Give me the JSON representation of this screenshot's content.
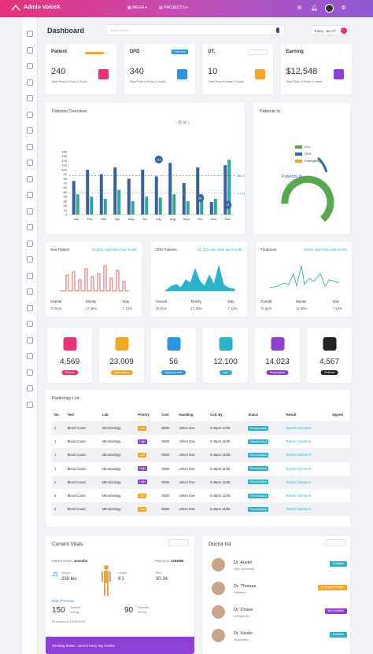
{
  "app": {
    "title": "Admin VoiceX",
    "mega": "MEGA",
    "projects": "PROJECTS"
  },
  "header": {
    "page_title": "Dashboard",
    "search_placeholder": "Voice Search",
    "today": "Today: Jan 27"
  },
  "stats": [
    {
      "label": "Patient",
      "value": "240",
      "sub": "Total Flow In Every 3 hours",
      "progress": 0.8,
      "color": "#e8327a",
      "icon": "wheelchair-icon"
    },
    {
      "label": "OPD",
      "value": "340",
      "sub": "Total Flow In Every 3 hours",
      "badge": "Click here",
      "color": "#2a94e6",
      "icon": "person-icon"
    },
    {
      "label": "OT.",
      "value": "10",
      "sub": "Total Flow In Every 3 hours",
      "color": "#f5a623",
      "icon": "calendar-icon"
    },
    {
      "label": "Earning",
      "value": "$12,548",
      "sub": "Total Flow In Every 3 hours",
      "color": "#8e3fd6",
      "icon": "wallet-icon"
    }
  ],
  "overview": {
    "title": "Patients Overview"
  },
  "chart_data": {
    "type": "bar",
    "categories": [
      "Jan",
      "Feb",
      "Mar",
      "Apr",
      "May",
      "Jun",
      "July",
      "Aug",
      "Sept",
      "Oct",
      "Nov",
      "Dec"
    ],
    "series": [
      {
        "name": "",
        "color": "#3b5fa0",
        "values": [
          75,
          100,
          90,
          105,
          80,
          100,
          85,
          115,
          70,
          105,
          28,
          110
        ]
      },
      {
        "name": "",
        "color": "#2fa89a",
        "values": [
          45,
          40,
          35,
          55,
          30,
          40,
          38,
          45,
          30,
          45,
          35,
          122
        ]
      }
    ],
    "ylim": [
      0,
      140
    ],
    "yticks": [
      "0",
      "10",
      "20",
      "30",
      "40",
      "50",
      "60",
      "70",
      "80",
      "90",
      "100",
      "110",
      "120",
      "130",
      "140"
    ],
    "annotations": [
      {
        "x": "July",
        "label": "114"
      },
      {
        "x": "Oct",
        "label": "28"
      },
      {
        "x": "Dec",
        "label": "13"
      }
    ],
    "lines": [
      {
        "value": 86.75,
        "label": "86.75"
      },
      {
        "value": 47.58,
        "label": "47.58"
      }
    ]
  },
  "patients_in": {
    "title": "Patients In",
    "legend": [
      {
        "label": "ICU",
        "color": "#57a850"
      },
      {
        "label": "OPD",
        "color": "#2a6db0"
      },
      {
        "label": "Emergency",
        "color": "#f5a623"
      }
    ],
    "center_title": "Patients In",
    "center_sub": "Daily Data"
  },
  "minis": [
    {
      "title": "New Patient",
      "highlight": "14.21% High then last month",
      "color": "#d93b3b",
      "overall": "70.51%",
      "monthly": "17.39%",
      "day": "7.12%"
    },
    {
      "title": "OPD Patients",
      "highlight": "11.12% less then last month",
      "color": "#2ab3c8",
      "overall": "70.51%",
      "monthly": "17.39%",
      "day": "7.12%"
    },
    {
      "title": "Treatment",
      "highlight": "19.5% High then last month",
      "color": "#2fa89a",
      "overall": "70.51%",
      "monthly": "17.39%",
      "day": "7.12%"
    }
  ],
  "mini_labels": {
    "overall": "Overall",
    "monthly": "Montly",
    "day": "Day"
  },
  "tiles": [
    {
      "value": "4,569",
      "label": "Patient",
      "color": "#e8327a",
      "icon": "wheelchair-icon"
    },
    {
      "value": "23,009",
      "label": "Encounters",
      "color": "#f5a623",
      "icon": "document-icon"
    },
    {
      "value": "56",
      "label": "Appointments",
      "color": "#2a94e6",
      "icon": "calendar-icon"
    },
    {
      "value": "12,100",
      "label": "Lab",
      "color": "#2ab3c8",
      "icon": "heartbeat-icon"
    },
    {
      "value": "14,023",
      "label": "Prescription",
      "color": "#8e3fd6",
      "icon": "list-icon"
    },
    {
      "value": "4,567",
      "label": "Referral",
      "color": "#222222",
      "icon": "refresh-icon"
    }
  ],
  "radiology": {
    "title": "Radiology List",
    "headers": [
      "No.",
      "Test",
      "Lab",
      "Priority",
      "Cost",
      "Handling",
      "Coll. By",
      "Status",
      "Result",
      "Signed"
    ],
    "rows": [
      {
        "no": "1",
        "test": "Blood Count",
        "lab": "Microbiology",
        "priority": "Low",
        "cost": "N500",
        "handling": "Johen Doe",
        "coll": "5.45pm 11/05",
        "status": "Result Added",
        "result": "Result Comment"
      },
      {
        "no": "1",
        "test": "Blood Count",
        "lab": "Microbiology",
        "priority": "High",
        "cost": "N500",
        "handling": "Johen Doe",
        "coll": "5.45pm 11/05",
        "status": "Result Added",
        "result": "Result Comment"
      },
      {
        "no": "1",
        "test": "Blood Count",
        "lab": "Microbiology",
        "priority": "Low",
        "cost": "N500",
        "handling": "Johen Doe",
        "coll": "5.45pm 11/05",
        "status": "Result Added",
        "result": "Result Comment"
      },
      {
        "no": "1",
        "test": "Blood Count",
        "lab": "Microbiology",
        "priority": "High",
        "cost": "N500",
        "handling": "Johen Doe",
        "coll": "5.45pm 11/05",
        "status": "Result Added",
        "result": "Result Comment"
      },
      {
        "no": "2",
        "test": "Blood Count",
        "lab": "Microbiology",
        "priority": "High",
        "cost": "N500",
        "handling": "Johen Doe",
        "coll": "5.45pm 11/05",
        "status": "Result Added",
        "result": "Result Comment"
      },
      {
        "no": "3",
        "test": "Blood Count",
        "lab": "Microbiology",
        "priority": "Low",
        "cost": "N500",
        "handling": "Johen Doe",
        "coll": "5.45pm 11/05",
        "status": "Result Added",
        "result": "Result Comment"
      },
      {
        "no": "4",
        "test": "Blood Count",
        "lab": "Microbiology",
        "priority": "Low",
        "cost": "N500",
        "handling": "Johen Doe",
        "coll": "5.45pm 11/05",
        "status": "Result Added",
        "result": "Result Comment"
      }
    ]
  },
  "vitals": {
    "title": "Current Vitals",
    "patient_name_label": "Patient Name:",
    "patient_name": "Jonoafor",
    "patient_id_label": "Patient Id:",
    "patient_id": "1254896",
    "weight_label": "Weight",
    "weight": "230 lbs",
    "height_label": "Height",
    "height": "6'1",
    "bmi_label": "BMI",
    "bmi": "30.34",
    "bp_label": "Blood Pressure",
    "systolic": "150",
    "systolic_label": "Systolic",
    "systolic_unit": "mmHg",
    "diastolic": "90",
    "diastolic_label": "Diastolic",
    "diastolic_unit": "mmHg",
    "recorded": "Recorded on 15/05/2018",
    "smoking": "Smoking Status : current every day smoker"
  },
  "doctors": {
    "title": "Doctor list",
    "items": [
      {
        "name": "Dr. Austin",
        "spec": "Skin Specialist",
        "badge": "Available",
        "color": "#2ab3c8"
      },
      {
        "name": "Dr. Thomas",
        "spec": "Pediatric",
        "badge": "In Surgery Till 8pm",
        "color": "#f5a623"
      },
      {
        "name": "Dr. Chase",
        "spec": "Orthopedic",
        "badge": "Not Available",
        "color": "#8e3fd6"
      },
      {
        "name": "Dr. Xavier",
        "spec": "Psychiatry",
        "badge": "Available",
        "color": "#2ab3c8"
      }
    ]
  }
}
